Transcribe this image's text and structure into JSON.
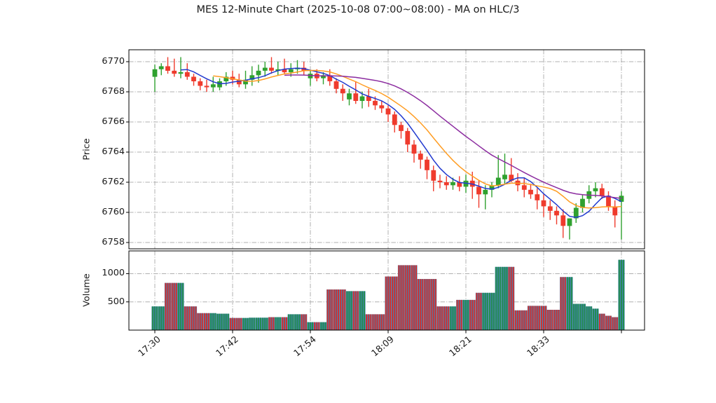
{
  "title": "MES 12-Minute Chart (2025-10-08 07:00~08:00) - MA on HLC/3",
  "price_panel": {
    "axis_label": "Price",
    "y_ticks": [
      6758,
      6760,
      6762,
      6764,
      6766,
      6768,
      6770
    ]
  },
  "volume_panel": {
    "axis_label": "Volume",
    "y_ticks": [
      500,
      1000
    ]
  },
  "x_axis": {
    "labels": [
      "17:30",
      "17:42",
      "17:54",
      "18:09",
      "18:21",
      "18:33"
    ],
    "label_indices": [
      0,
      12,
      24,
      36,
      48,
      60
    ],
    "unlabeled_tick_index": 72
  },
  "colors": {
    "up": "#2fa12f",
    "down": "#ef3b2d",
    "volume_base": "#4682b4",
    "volume_up_stripe": "#238c50",
    "volume_down_stripe": "#cd3232",
    "ma_fast": "#2139cf",
    "ma_mid": "#ff9d23",
    "ma_slow": "#8c2da0",
    "grid": "#b0b0b0",
    "spine": "#000000",
    "text": "#1a1a1a"
  },
  "chart_data": {
    "type": "candlestick_with_volume",
    "title": "MES 12-Minute Chart (2025-10-08 07:00~08:00) - MA on HLC/3",
    "interval_minutes": 1,
    "ma_source": "HLC/3",
    "ma_periods": [
      5,
      10,
      21
    ],
    "price_ylim": [
      6757.5,
      6770.8
    ],
    "volume_ylim": [
      0,
      1400
    ],
    "grid": "dash-dot",
    "columns": [
      "time",
      "open",
      "high",
      "low",
      "close",
      "volume"
    ],
    "candles": [
      [
        "17:30",
        6769.0,
        6769.8,
        6768.0,
        6769.5,
        420
      ],
      [
        "17:31",
        6769.5,
        6769.9,
        6769.1,
        6769.7,
        420
      ],
      [
        "17:32",
        6769.7,
        6770.3,
        6769.2,
        6769.4,
        835
      ],
      [
        "17:33",
        6769.4,
        6770.2,
        6769.0,
        6769.2,
        835
      ],
      [
        "17:34",
        6769.2,
        6770.3,
        6768.9,
        6769.3,
        835
      ],
      [
        "17:35",
        6769.3,
        6769.9,
        6768.8,
        6769.0,
        420
      ],
      [
        "17:36",
        6769.0,
        6769.2,
        6768.4,
        6768.7,
        420
      ],
      [
        "17:37",
        6768.7,
        6768.9,
        6768.1,
        6768.4,
        300
      ],
      [
        "17:38",
        6768.4,
        6768.8,
        6768.0,
        6768.3,
        300
      ],
      [
        "17:39",
        6768.3,
        6769.0,
        6768.0,
        6768.5,
        300
      ],
      [
        "17:40",
        6768.3,
        6768.9,
        6768.1,
        6768.7,
        290
      ],
      [
        "17:41",
        6768.7,
        6769.3,
        6768.4,
        6769.0,
        290
      ],
      [
        "17:42",
        6769.0,
        6769.4,
        6768.5,
        6768.8,
        215
      ],
      [
        "17:43",
        6768.8,
        6769.2,
        6768.3,
        6768.5,
        215
      ],
      [
        "17:44",
        6768.5,
        6769.4,
        6768.2,
        6768.8,
        215
      ],
      [
        "17:45",
        6768.8,
        6769.7,
        6768.4,
        6769.1,
        220
      ],
      [
        "17:46",
        6769.1,
        6769.8,
        6768.6,
        6769.4,
        220
      ],
      [
        "17:47",
        6769.4,
        6770.0,
        6769.0,
        6769.6,
        220
      ],
      [
        "17:48",
        6769.6,
        6770.3,
        6769.2,
        6769.4,
        230
      ],
      [
        "17:49",
        6769.4,
        6770.0,
        6769.1,
        6769.5,
        230
      ],
      [
        "17:50",
        6769.5,
        6770.2,
        6769.2,
        6769.3,
        230
      ],
      [
        "17:51",
        6769.3,
        6769.9,
        6769.0,
        6769.5,
        280
      ],
      [
        "17:52",
        6769.5,
        6770.1,
        6769.2,
        6769.6,
        280
      ],
      [
        "17:53",
        6769.6,
        6770.0,
        6769.1,
        6769.4,
        280
      ],
      [
        "17:54",
        6768.9,
        6769.4,
        6768.4,
        6769.2,
        140
      ],
      [
        "17:55",
        6769.2,
        6769.5,
        6768.7,
        6768.9,
        140
      ],
      [
        "17:56",
        6768.9,
        6769.3,
        6768.5,
        6769.1,
        140
      ],
      [
        "17:57",
        6769.1,
        6769.5,
        6768.4,
        6768.7,
        720
      ],
      [
        "17:58",
        6768.7,
        6768.9,
        6767.9,
        6768.2,
        720
      ],
      [
        "17:59",
        6768.2,
        6768.5,
        6767.4,
        6767.9,
        720
      ],
      [
        "18:00",
        6767.5,
        6768.2,
        6767.1,
        6767.9,
        690
      ],
      [
        "18:01",
        6767.9,
        6768.7,
        6767.2,
        6767.4,
        690
      ],
      [
        "18:02",
        6767.4,
        6768.0,
        6766.9,
        6767.7,
        690
      ],
      [
        "18:03",
        6767.7,
        6768.2,
        6767.0,
        6767.4,
        280
      ],
      [
        "18:04",
        6767.4,
        6767.7,
        6766.8,
        6767.1,
        280
      ],
      [
        "18:05",
        6767.1,
        6767.4,
        6766.6,
        6766.9,
        280
      ],
      [
        "18:09",
        6766.9,
        6767.1,
        6766.0,
        6766.5,
        950
      ],
      [
        "18:10",
        6766.5,
        6766.7,
        6765.3,
        6765.8,
        950
      ],
      [
        "18:11",
        6765.8,
        6766.0,
        6764.9,
        6765.4,
        1150
      ],
      [
        "18:12",
        6765.4,
        6765.6,
        6764.0,
        6764.5,
        1150
      ],
      [
        "18:13",
        6764.5,
        6764.8,
        6763.3,
        6763.9,
        1150
      ],
      [
        "18:14",
        6763.9,
        6764.1,
        6762.9,
        6763.5,
        905
      ],
      [
        "18:15",
        6763.5,
        6763.7,
        6762.2,
        6762.8,
        905
      ],
      [
        "18:16",
        6762.8,
        6763.1,
        6761.4,
        6762.1,
        905
      ],
      [
        "18:17",
        6762.1,
        6762.5,
        6761.6,
        6762.0,
        420
      ],
      [
        "18:18",
        6762.0,
        6762.4,
        6761.5,
        6761.8,
        420
      ],
      [
        "18:19",
        6761.8,
        6762.3,
        6761.5,
        6762.0,
        420
      ],
      [
        "18:20",
        6762.0,
        6762.4,
        6761.4,
        6761.7,
        535
      ],
      [
        "18:21",
        6761.7,
        6762.5,
        6761.3,
        6762.1,
        535
      ],
      [
        "18:22",
        6762.1,
        6762.7,
        6760.9,
        6761.7,
        535
      ],
      [
        "18:23",
        6761.7,
        6762.1,
        6760.3,
        6761.2,
        660
      ],
      [
        "18:24",
        6761.2,
        6761.8,
        6760.2,
        6761.5,
        660
      ],
      [
        "18:25",
        6761.5,
        6762.0,
        6761.0,
        6761.8,
        660
      ],
      [
        "18:26",
        6761.8,
        6763.8,
        6761.6,
        6762.3,
        1120
      ],
      [
        "18:27",
        6762.2,
        6763.9,
        6761.9,
        6762.5,
        1120
      ],
      [
        "18:28",
        6762.5,
        6763.6,
        6762.0,
        6762.1,
        1120
      ],
      [
        "18:29",
        6762.1,
        6762.6,
        6761.4,
        6761.8,
        350
      ],
      [
        "18:30",
        6761.8,
        6762.3,
        6761.0,
        6761.5,
        350
      ],
      [
        "18:31",
        6761.5,
        6761.9,
        6760.9,
        6761.2,
        430
      ],
      [
        "18:32",
        6761.2,
        6761.6,
        6760.2,
        6760.8,
        430
      ],
      [
        "18:33",
        6760.8,
        6761.2,
        6759.7,
        6760.4,
        430
      ],
      [
        "18:34",
        6760.4,
        6760.8,
        6759.5,
        6760.1,
        360
      ],
      [
        "18:35",
        6760.1,
        6760.4,
        6759.2,
        6759.8,
        360
      ],
      [
        "18:36",
        6759.8,
        6760.2,
        6758.3,
        6759.1,
        940
      ],
      [
        "18:37",
        6759.1,
        6759.6,
        6758.2,
        6759.6,
        940
      ],
      [
        "18:38",
        6759.6,
        6760.6,
        6759.3,
        6760.3,
        465
      ],
      [
        "18:39",
        6760.3,
        6761.2,
        6760.0,
        6760.9,
        465
      ],
      [
        "18:40",
        6760.9,
        6761.8,
        6760.6,
        6761.4,
        420
      ],
      [
        "18:41",
        6761.4,
        6762.0,
        6761.0,
        6761.6,
        380
      ],
      [
        "18:42",
        6761.6,
        6761.9,
        6760.9,
        6761.1,
        290
      ],
      [
        "18:43",
        6761.1,
        6761.4,
        6760.1,
        6760.4,
        255
      ],
      [
        "18:44",
        6760.4,
        6760.8,
        6759.0,
        6759.8,
        230
      ],
      [
        "18:45",
        6760.7,
        6761.4,
        6758.2,
        6761.1,
        1245
      ]
    ]
  }
}
